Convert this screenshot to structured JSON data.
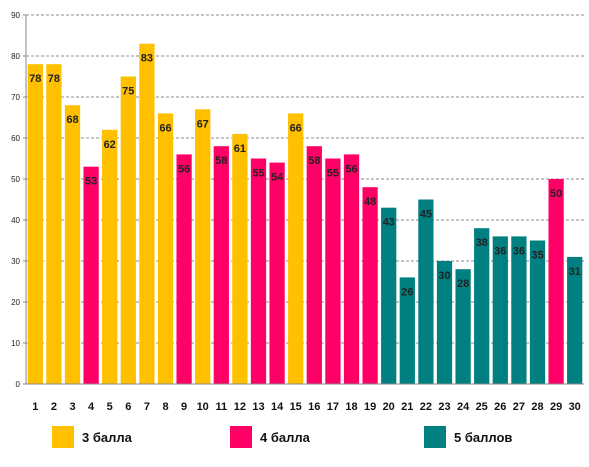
{
  "chart_data": {
    "type": "bar",
    "title": "",
    "xlabel": "",
    "ylabel": "",
    "ylim": [
      0,
      90
    ],
    "ytick_step": 10,
    "grid": true,
    "legend_position": "bottom",
    "categories": [
      "1",
      "2",
      "3",
      "4",
      "5",
      "6",
      "7",
      "8",
      "9",
      "10",
      "11",
      "12",
      "13",
      "14",
      "15",
      "16",
      "17",
      "18",
      "19",
      "20",
      "21",
      "22",
      "23",
      "24",
      "25",
      "26",
      "27",
      "28",
      "29",
      "30"
    ],
    "values": [
      78,
      78,
      68,
      53,
      62,
      75,
      83,
      66,
      56,
      67,
      58,
      61,
      55,
      54,
      66,
      58,
      55,
      56,
      48,
      43,
      26,
      45,
      30,
      28,
      38,
      36,
      36,
      35,
      50,
      31
    ],
    "groups": [
      "g3",
      "g3",
      "g3",
      "g4",
      "g3",
      "g3",
      "g3",
      "g3",
      "g4",
      "g3",
      "g4",
      "g3",
      "g4",
      "g4",
      "g3",
      "g4",
      "g4",
      "g4",
      "g4",
      "g5",
      "g5",
      "g5",
      "g5",
      "g5",
      "g5",
      "g5",
      "g5",
      "g5",
      "g4",
      "g5"
    ],
    "legend": [
      {
        "key": "g3",
        "name": "3 балла",
        "color": "#FFC000"
      },
      {
        "key": "g4",
        "name": "4 балла",
        "color": "#FF0066"
      },
      {
        "key": "g5",
        "name": "5 баллов",
        "color": "#008080"
      }
    ]
  }
}
